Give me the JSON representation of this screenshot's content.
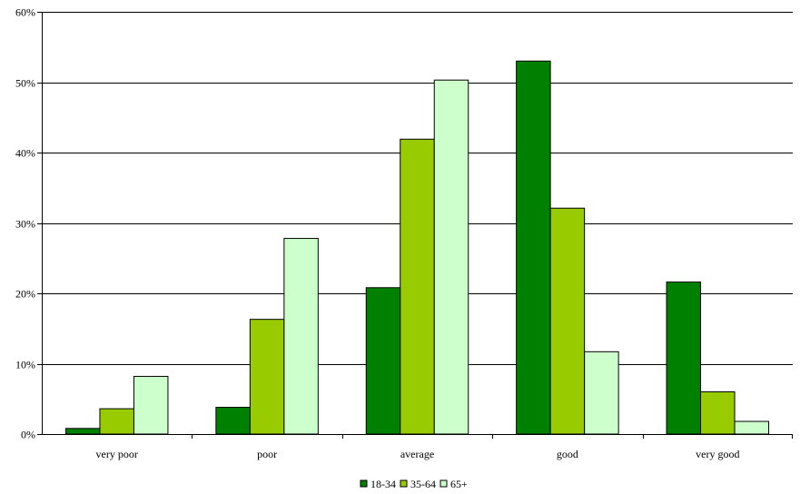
{
  "chart_data": {
    "type": "bar",
    "title": "",
    "xlabel": "",
    "ylabel": "",
    "categories": [
      "very poor",
      "poor",
      "average",
      "good",
      "very good"
    ],
    "series": [
      {
        "name": "18-34",
        "color": "#008000",
        "values": [
          0.8,
          3.8,
          20.8,
          53.0,
          21.6
        ]
      },
      {
        "name": "35-64",
        "color": "#99CC00",
        "values": [
          3.6,
          16.3,
          41.9,
          32.1,
          6.0
        ]
      },
      {
        "name": "65+",
        "color": "#CCFFCC",
        "values": [
          8.2,
          27.8,
          50.3,
          11.7,
          1.8
        ]
      }
    ],
    "ylim": [
      0,
      60
    ],
    "yticks": [
      0,
      10,
      20,
      30,
      40,
      50,
      60
    ],
    "ytick_labels": [
      "0%",
      "10%",
      "20%",
      "30%",
      "40%",
      "50%",
      "60%"
    ],
    "grid": true,
    "legend_position": "bottom-center"
  }
}
